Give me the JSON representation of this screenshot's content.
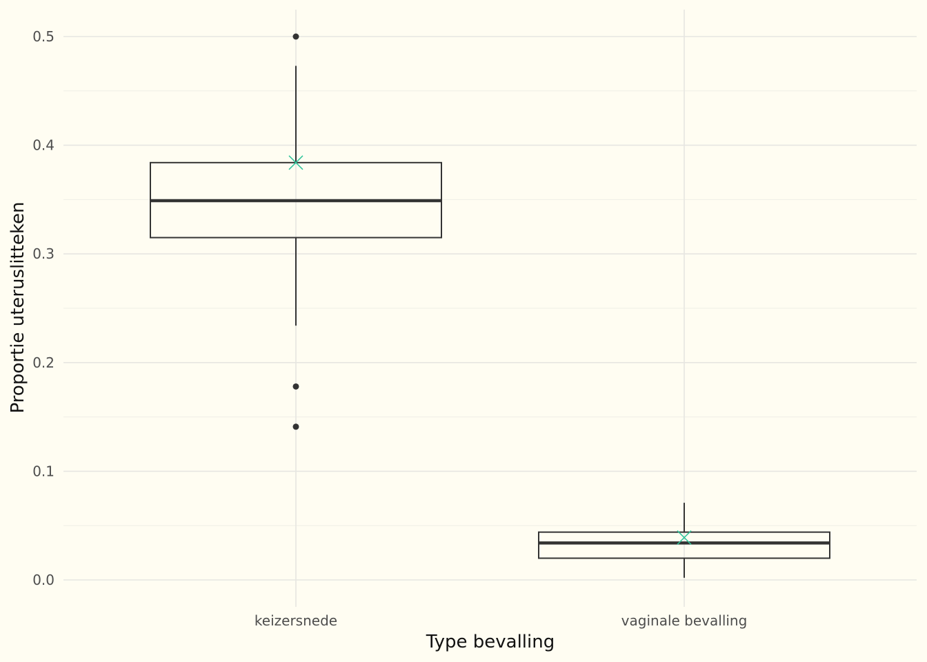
{
  "chart_data": {
    "type": "boxplot",
    "xlabel": "Type bevalling",
    "ylabel": "Proportie uteruslitteken",
    "ylim": [
      -0.025,
      0.525
    ],
    "yticks": [
      0.0,
      0.1,
      0.2,
      0.3,
      0.4,
      0.5
    ],
    "ytick_labels": [
      "0.0",
      "0.1",
      "0.2",
      "0.3",
      "0.4",
      "0.5"
    ],
    "categories": [
      "keizersnede",
      "vaginale bevalling"
    ],
    "grid": true,
    "legend": "none",
    "boxes": [
      {
        "category": "keizersnede",
        "whisker_low": 0.234,
        "q1": 0.315,
        "median": 0.349,
        "q3": 0.384,
        "whisker_high": 0.473,
        "mean": 0.384,
        "outliers": [
          0.5,
          0.178,
          0.141
        ]
      },
      {
        "category": "vaginale bevalling",
        "whisker_low": 0.002,
        "q1": 0.02,
        "median": 0.034,
        "q3": 0.044,
        "whisker_high": 0.071,
        "mean": 0.039,
        "outliers": []
      }
    ],
    "colors": {
      "background": "#fffdf2",
      "box": "#333333",
      "mean_marker": "#2fc49a",
      "grid": "#e6e6e1"
    }
  }
}
